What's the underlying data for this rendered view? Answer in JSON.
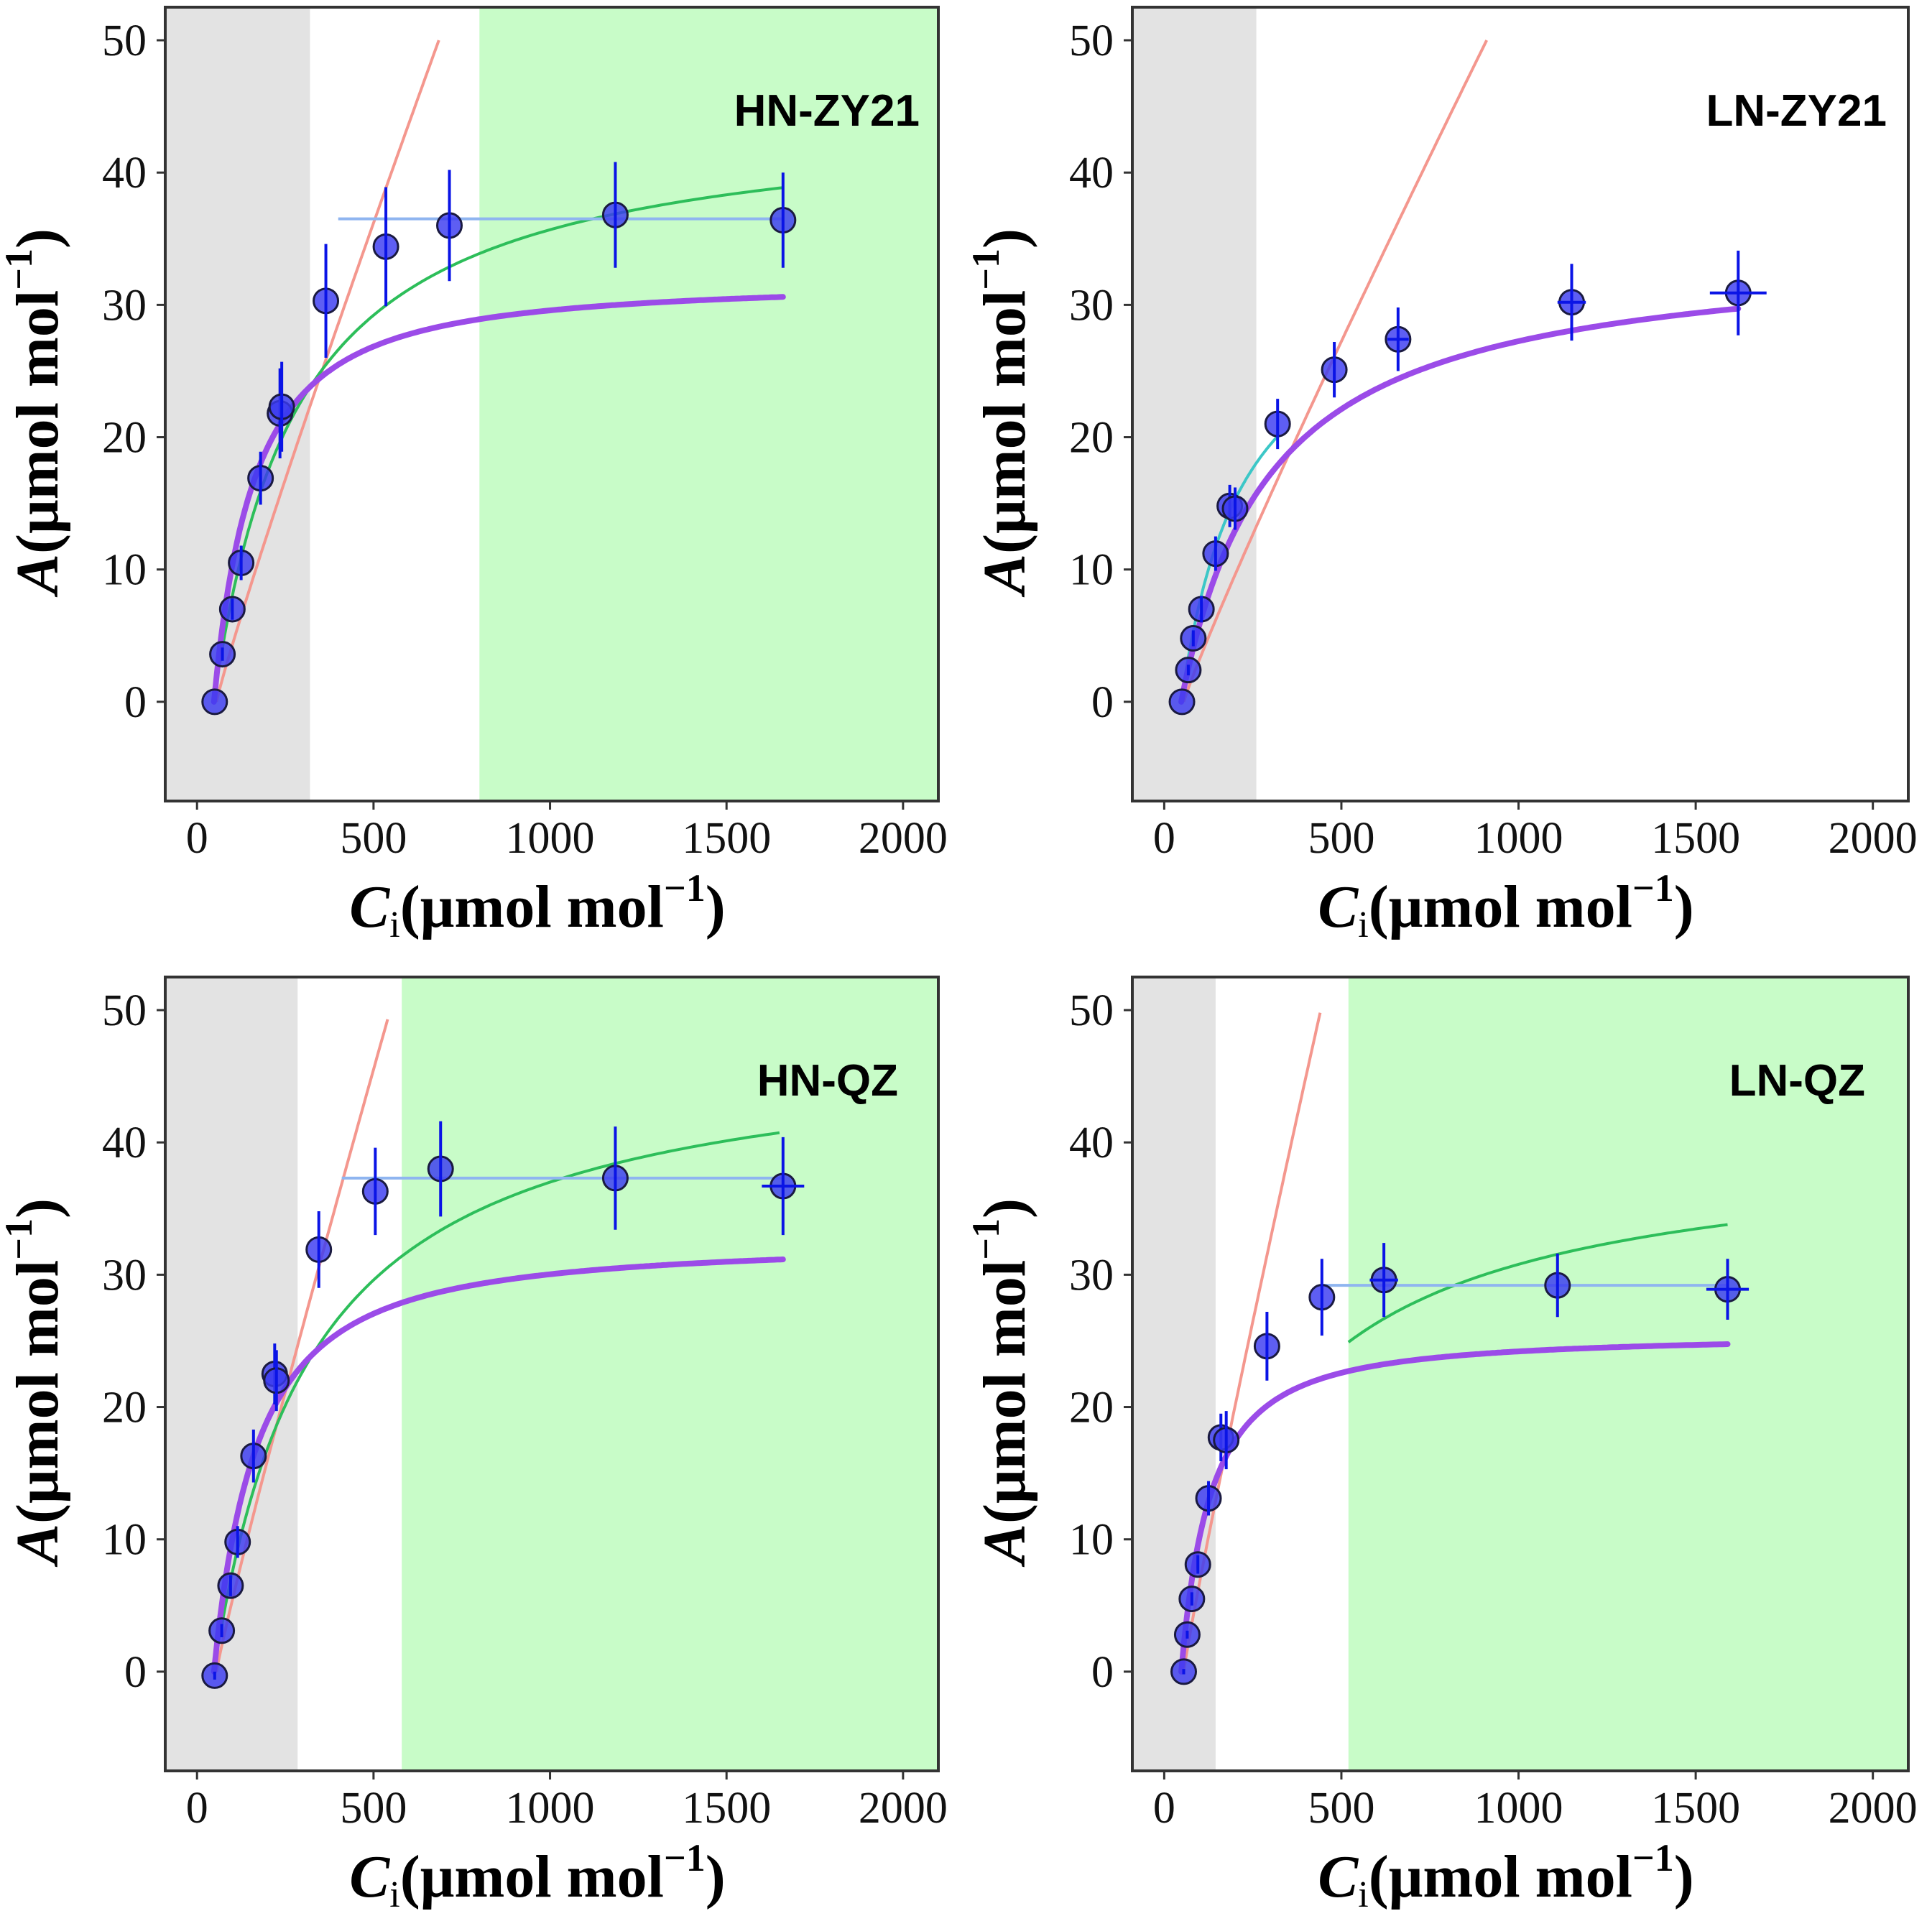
{
  "figure": {
    "axis_labels": {
      "x_italic": "C",
      "x_sub": "i",
      "x_rest": "(μmol mol",
      "y_italic": "A",
      "y_rest": "(μmol mol",
      "unit_exp": "−1",
      "close": ")"
    }
  },
  "colors": {
    "grey_region": "#e3e3e3",
    "green_region": "#c8fcc8",
    "rubisco_curve": "#f4978e",
    "rubp_curve": "#2dbe5a",
    "rubp_curve_alt": "#3cc7c7",
    "tpu_line": "#8fb5f0",
    "fit_curve": "#9b4be8",
    "points": "#3b3bf0",
    "errorbars": "#0a14e6",
    "frame": "#333333"
  },
  "chart_data": [
    {
      "type": "scatter",
      "panel": "HN-ZY21",
      "title": "HN-ZY21",
      "xlim": [
        -90,
        2100
      ],
      "ylim": [
        -7.5,
        52.5
      ],
      "xticks": [
        "0",
        "500",
        "1000",
        "1500",
        "2000"
      ],
      "yticks": [
        "0",
        "10",
        "20",
        "30",
        "40",
        "50"
      ],
      "regions": {
        "grey": [
          -90,
          320
        ],
        "green": [
          800,
          2100
        ]
      },
      "points": [
        {
          "x": 50,
          "y": 0.0,
          "yerr": 0.0,
          "xerr": 0
        },
        {
          "x": 72,
          "y": 3.6,
          "yerr": 0.5,
          "xerr": 0
        },
        {
          "x": 100,
          "y": 7.0,
          "yerr": 0.8,
          "xerr": 0
        },
        {
          "x": 125,
          "y": 10.5,
          "yerr": 1.3,
          "xerr": 0
        },
        {
          "x": 180,
          "y": 16.9,
          "yerr": 2.0,
          "xerr": 0
        },
        {
          "x": 235,
          "y": 21.8,
          "yerr": 3.4,
          "xerr": 0
        },
        {
          "x": 240,
          "y": 22.3,
          "yerr": 3.4,
          "xerr": 0
        },
        {
          "x": 365,
          "y": 30.3,
          "yerr": 4.3,
          "xerr": 0
        },
        {
          "x": 535,
          "y": 34.4,
          "yerr": 4.5,
          "xerr": 0
        },
        {
          "x": 715,
          "y": 36.0,
          "yerr": 4.2,
          "xerr": 0
        },
        {
          "x": 1185,
          "y": 36.8,
          "yerr": 4.0,
          "xerr": 0
        },
        {
          "x": 1660,
          "y": 36.4,
          "yerr": 3.6,
          "xerr": 0
        }
      ],
      "ac_curve": {
        "x0": 55,
        "x1": 685,
        "exp": 0.93,
        "ymax": 50
      },
      "aj_curve": {
        "x0": 65,
        "x1": 1660,
        "amax": 44.6,
        "km": 190,
        "gamma": 48
      },
      "tpu": {
        "y": 36.5,
        "x0": 400
      },
      "fit": {
        "kind": "nonrect",
        "amax": 36.5,
        "km": 130,
        "gamma": 48,
        "theta": 0.98,
        "x1": 1660
      }
    },
    {
      "type": "scatter",
      "panel": "LN-ZY21",
      "title": "LN-ZY21",
      "xlim": [
        -90,
        2100
      ],
      "ylim": [
        -7.5,
        52.5
      ],
      "xticks": [
        "0",
        "500",
        "1000",
        "1500",
        "2000"
      ],
      "yticks": [
        "0",
        "10",
        "20",
        "30",
        "40",
        "50"
      ],
      "regions": {
        "grey": [
          -90,
          260
        ],
        "green": null
      },
      "points": [
        {
          "x": 50,
          "y": 0.0,
          "yerr": 0.0,
          "xerr": 0
        },
        {
          "x": 68,
          "y": 2.4,
          "yerr": 0.4,
          "xerr": 0
        },
        {
          "x": 82,
          "y": 4.8,
          "yerr": 0.6,
          "xerr": 0
        },
        {
          "x": 105,
          "y": 7.0,
          "yerr": 1.0,
          "xerr": 0
        },
        {
          "x": 145,
          "y": 11.2,
          "yerr": 1.3,
          "xerr": 0
        },
        {
          "x": 185,
          "y": 14.8,
          "yerr": 1.6,
          "xerr": 0
        },
        {
          "x": 200,
          "y": 14.6,
          "yerr": 1.6,
          "xerr": 0
        },
        {
          "x": 320,
          "y": 21.0,
          "yerr": 1.9,
          "xerr": 0
        },
        {
          "x": 480,
          "y": 25.1,
          "yerr": 2.1,
          "xerr": 0
        },
        {
          "x": 660,
          "y": 27.4,
          "yerr": 2.4,
          "xerr": 30
        },
        {
          "x": 1150,
          "y": 30.2,
          "yerr": 2.9,
          "xerr": 40
        },
        {
          "x": 1620,
          "y": 30.9,
          "yerr": 3.2,
          "xerr": 80
        }
      ],
      "ac_curve": {
        "x0": 55,
        "x1": 910,
        "exp": 0.93,
        "ymax": 50
      },
      "aj_curve": {
        "x0": 55,
        "x1": 320,
        "amax": 33.2,
        "km": 130,
        "gamma": 48
      },
      "tpu": null,
      "fit": {
        "kind": "mm",
        "amax": 34.5,
        "km": 205,
        "gamma": 48,
        "x1": 1620
      }
    },
    {
      "type": "scatter",
      "panel": "HN-QZ",
      "title": "HN-QZ",
      "xlim": [
        -90,
        2100
      ],
      "ylim": [
        -7.5,
        52.5
      ],
      "xticks": [
        "0",
        "500",
        "1000",
        "1500",
        "2000"
      ],
      "yticks": [
        "0",
        "10",
        "20",
        "30",
        "40",
        "50"
      ],
      "regions": {
        "grey": [
          -90,
          285
        ],
        "green": [
          580,
          2100
        ]
      },
      "points": [
        {
          "x": 50,
          "y": -0.3,
          "yerr": 0.3,
          "xerr": 0
        },
        {
          "x": 70,
          "y": 3.1,
          "yerr": 0.5,
          "xerr": 0
        },
        {
          "x": 95,
          "y": 6.5,
          "yerr": 0.8,
          "xerr": 0
        },
        {
          "x": 115,
          "y": 9.8,
          "yerr": 1.2,
          "xerr": 0
        },
        {
          "x": 160,
          "y": 16.3,
          "yerr": 2.0,
          "xerr": 0
        },
        {
          "x": 220,
          "y": 22.5,
          "yerr": 2.3,
          "xerr": 0
        },
        {
          "x": 225,
          "y": 22.0,
          "yerr": 2.3,
          "xerr": 0
        },
        {
          "x": 345,
          "y": 31.9,
          "yerr": 2.9,
          "xerr": 0
        },
        {
          "x": 505,
          "y": 36.3,
          "yerr": 3.3,
          "xerr": 0
        },
        {
          "x": 690,
          "y": 38.0,
          "yerr": 3.6,
          "xerr": 0
        },
        {
          "x": 1185,
          "y": 37.3,
          "yerr": 3.9,
          "xerr": 0
        },
        {
          "x": 1660,
          "y": 36.7,
          "yerr": 3.7,
          "xerr": 60
        }
      ],
      "ac_curve": {
        "x0": 55,
        "x1": 540,
        "exp": 0.93,
        "ymax": 49.3
      },
      "aj_curve": {
        "x0": 70,
        "x1": 1650,
        "amax": 47.8,
        "km": 230,
        "gamma": 48
      },
      "tpu": {
        "y": 37.3,
        "x0": 410
      },
      "fit": {
        "kind": "nonrect",
        "amax": 37.3,
        "km": 140,
        "gamma": 48,
        "theta": 0.98,
        "x1": 1660
      }
    },
    {
      "type": "scatter",
      "panel": "LN-QZ",
      "title": "LN-QZ",
      "xlim": [
        -90,
        2100
      ],
      "ylim": [
        -7.5,
        52.5
      ],
      "xticks": [
        "0",
        "500",
        "1000",
        "1500",
        "2000"
      ],
      "yticks": [
        "0",
        "10",
        "20",
        "30",
        "40",
        "50"
      ],
      "regions": {
        "grey": [
          -90,
          145
        ],
        "green": [
          520,
          2100
        ]
      },
      "points": [
        {
          "x": 55,
          "y": 0.0,
          "yerr": 0.2,
          "xerr": 0
        },
        {
          "x": 65,
          "y": 2.8,
          "yerr": 0.3,
          "xerr": 0
        },
        {
          "x": 78,
          "y": 5.5,
          "yerr": 0.5,
          "xerr": 0
        },
        {
          "x": 95,
          "y": 8.1,
          "yerr": 0.7,
          "xerr": 0
        },
        {
          "x": 125,
          "y": 13.1,
          "yerr": 1.3,
          "xerr": 0
        },
        {
          "x": 160,
          "y": 17.7,
          "yerr": 1.8,
          "xerr": 0
        },
        {
          "x": 175,
          "y": 17.5,
          "yerr": 2.2,
          "xerr": 0
        },
        {
          "x": 290,
          "y": 24.6,
          "yerr": 2.6,
          "xerr": 0
        },
        {
          "x": 445,
          "y": 28.3,
          "yerr": 2.9,
          "xerr": 0
        },
        {
          "x": 620,
          "y": 29.6,
          "yerr": 2.8,
          "xerr": 40
        },
        {
          "x": 1110,
          "y": 29.2,
          "yerr": 2.4,
          "xerr": 0
        },
        {
          "x": 1590,
          "y": 28.9,
          "yerr": 2.3,
          "xerr": 60
        }
      ],
      "ac_curve": {
        "x0": 55,
        "x1": 440,
        "exp": 0.93,
        "ymax": 49.8
      },
      "aj_curve": {
        "x0": 520,
        "x1": 1590,
        "amax": 40.1,
        "km": 240,
        "gamma": 48
      },
      "tpu": {
        "y": 29.2,
        "x0": 440
      },
      "fit": {
        "kind": "nonrect",
        "amax": 29.2,
        "km": 95,
        "gamma": 48,
        "theta": 0.98,
        "x1": 1590
      }
    }
  ]
}
